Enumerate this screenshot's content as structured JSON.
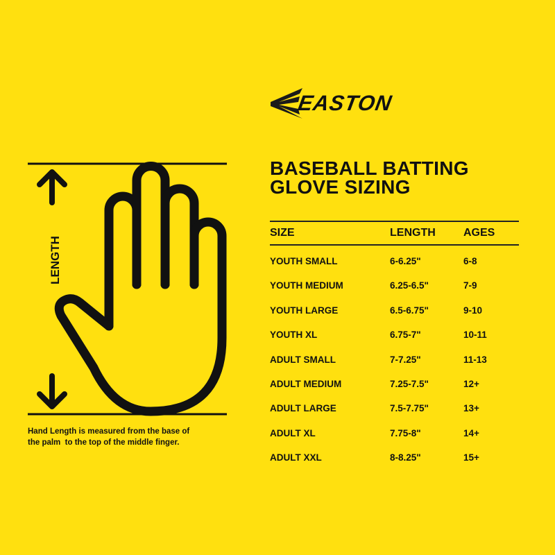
{
  "brand": {
    "name": "EASTON",
    "color": "#FFE00F"
  },
  "title": {
    "line1": "BASEBALL BATTING",
    "line2": "GLOVE SIZING"
  },
  "diagram": {
    "length_label": "LENGTH",
    "note_line1": "Hand Length is measured from the base of",
    "note_line2": "the palm  to the top of the middle finger."
  },
  "table": {
    "headers": [
      "SIZE",
      "LENGTH",
      "AGES"
    ],
    "rows": [
      [
        "YOUTH SMALL",
        "6-6.25\"",
        "6-8"
      ],
      [
        "YOUTH MEDIUM",
        "6.25-6.5\"",
        "7-9"
      ],
      [
        "YOUTH LARGE",
        "6.5-6.75\"",
        "9-10"
      ],
      [
        "YOUTH XL",
        "6.75-7\"",
        "10-11"
      ],
      [
        "ADULT SMALL",
        "7-7.25\"",
        "11-13"
      ],
      [
        "ADULT MEDIUM",
        "7.25-7.5\"",
        "12+"
      ],
      [
        "ADULT LARGE",
        "7.5-7.75\"",
        "13+"
      ],
      [
        "ADULT XL",
        "7.75-8\"",
        "14+"
      ],
      [
        "ADULT XXL",
        "8-8.25\"",
        "15+"
      ]
    ]
  }
}
